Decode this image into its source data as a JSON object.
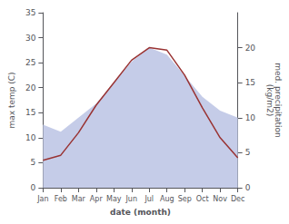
{
  "chart_data": {
    "type": "line",
    "categories": [
      "Jan",
      "Feb",
      "Mar",
      "Apr",
      "May",
      "Jun",
      "Jul",
      "Aug",
      "Sep",
      "Oct",
      "Nov",
      "Dec"
    ],
    "series": [
      {
        "type": "area",
        "axis": "y2",
        "color": "#c5cce8",
        "values": [
          9,
          8,
          10,
          12,
          15,
          18,
          20,
          19,
          16,
          13,
          11,
          10
        ]
      },
      {
        "type": "line",
        "color": "#993333",
        "values": [
          5.5,
          6.5,
          11.0,
          16.5,
          21.0,
          25.5,
          28.0,
          27.5,
          22.5,
          16.0,
          10.0,
          6.0
        ]
      }
    ],
    "xlabel": "date (month)",
    "ylabel": "max temp (C)",
    "y2label": "med. precipitation\n(kg/m2)",
    "ylim": [
      0,
      35
    ],
    "yticks": [
      0,
      5,
      10,
      15,
      20,
      25,
      30,
      35
    ],
    "y2lim": [
      0,
      25
    ],
    "y2ticks": [
      0,
      5,
      10,
      15,
      20
    ],
    "grid": false
  }
}
